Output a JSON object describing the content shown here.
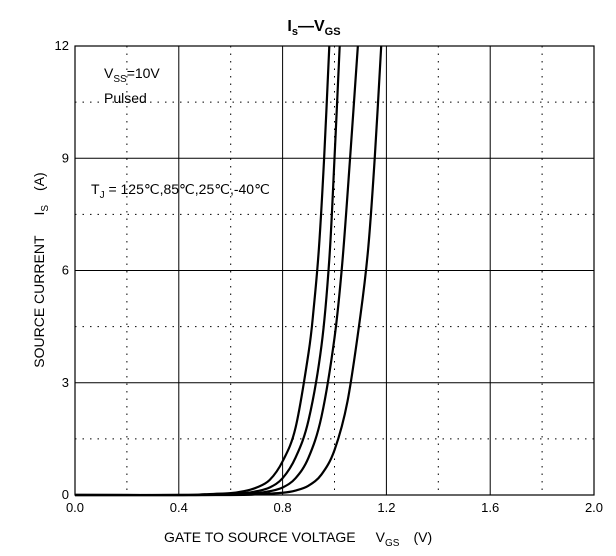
{
  "chart_data": {
    "type": "line",
    "title": {
      "main": "I",
      "sub1": "s",
      "sep": "—V",
      "sub2": "GS"
    },
    "xlabel": {
      "main": "GATE TO SOURCE VOLTAGE",
      "symbol": "V",
      "sub": "GS",
      "unit": "(V)"
    },
    "ylabel": {
      "main": "SOURCE CURRENT",
      "symbol": "I",
      "sub": "S",
      "unit": "(A)"
    },
    "xlim": [
      0.0,
      2.0
    ],
    "ylim": [
      0,
      12
    ],
    "xticks": [
      "0.0",
      "0.4",
      "0.8",
      "1.2",
      "1.6",
      "2.0"
    ],
    "xtick_values": [
      0.0,
      0.4,
      0.8,
      1.2,
      1.6,
      2.0
    ],
    "yticks": [
      "0",
      "3",
      "6",
      "9",
      "12"
    ],
    "ytick_values": [
      0,
      3,
      6,
      9,
      12
    ],
    "grid": {
      "major": "solid",
      "minor": "dotted"
    },
    "annotations": {
      "vss": {
        "sym": "V",
        "sub": "SS",
        "rest": "=10V"
      },
      "pulsed": "Pulsed",
      "tj": {
        "sym": "T",
        "sub": "J",
        "rest": " = 125℃,85℃,25℃,-40℃"
      }
    },
    "series": [
      {
        "x": [
          0.0,
          0.4,
          0.5,
          0.6,
          0.65,
          0.7,
          0.75,
          0.8,
          0.85,
          0.9,
          0.92,
          0.94,
          0.96,
          0.98
        ],
        "y": [
          0.0,
          0.0,
          0.02,
          0.05,
          0.1,
          0.2,
          0.4,
          0.9,
          1.8,
          3.8,
          5.0,
          6.6,
          9.0,
          12.0
        ]
      },
      {
        "x": [
          0.0,
          0.45,
          0.55,
          0.65,
          0.7,
          0.75,
          0.8,
          0.85,
          0.9,
          0.95,
          0.98,
          1.0,
          1.02
        ],
        "y": [
          0.0,
          0.0,
          0.02,
          0.05,
          0.1,
          0.2,
          0.45,
          1.0,
          2.0,
          4.0,
          6.3,
          9.0,
          12.0
        ]
      },
      {
        "x": [
          0.0,
          0.5,
          0.6,
          0.7,
          0.75,
          0.8,
          0.85,
          0.9,
          0.95,
          1.0,
          1.03,
          1.06,
          1.09
        ],
        "y": [
          0.0,
          0.0,
          0.02,
          0.05,
          0.1,
          0.2,
          0.45,
          1.0,
          2.1,
          4.2,
          6.2,
          9.0,
          12.0
        ]
      },
      {
        "x": [
          0.0,
          0.6,
          0.7,
          0.8,
          0.85,
          0.9,
          0.95,
          1.0,
          1.05,
          1.1,
          1.13,
          1.155,
          1.18
        ],
        "y": [
          0.0,
          0.0,
          0.02,
          0.06,
          0.12,
          0.25,
          0.55,
          1.2,
          2.5,
          4.8,
          6.6,
          9.0,
          12.0
        ]
      }
    ],
    "colors": {
      "line": "#000000",
      "grid": "#000000",
      "background": "#ffffff"
    }
  }
}
